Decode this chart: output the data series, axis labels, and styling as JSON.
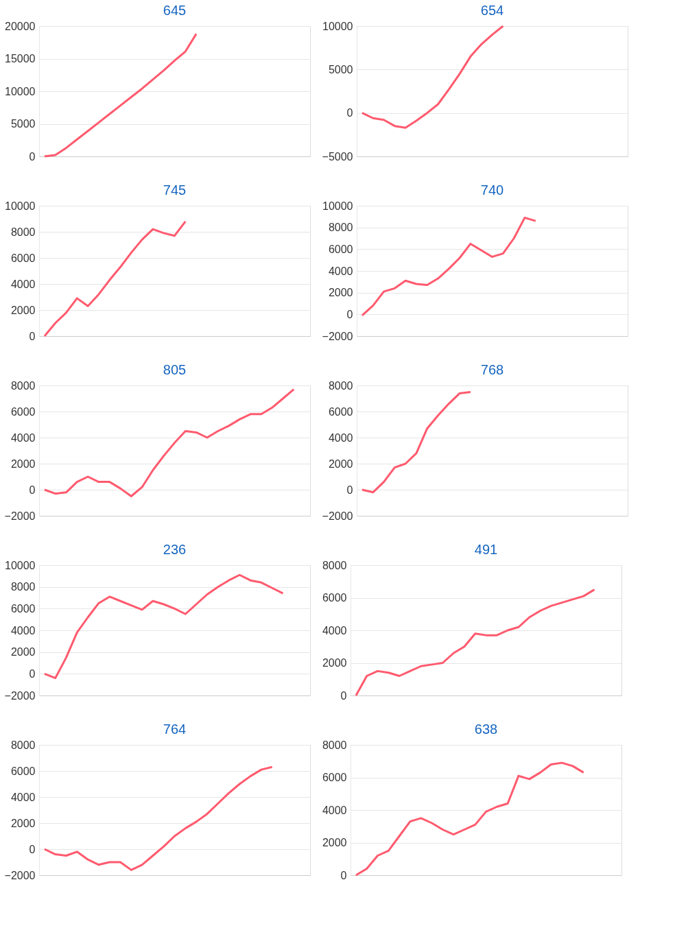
{
  "chart_data": [
    {
      "type": "line",
      "title": "645",
      "categories": [
        null,
        null,
        null,
        null,
        null,
        null,
        null,
        null,
        null,
        null,
        null,
        null,
        null,
        null,
        null,
        null,
        null,
        null,
        null,
        null,
        null,
        null,
        null,
        null,
        null
      ],
      "series": [
        {
          "color": "#ff5a6e",
          "values": [
            0,
            200,
            1300,
            2600,
            3900,
            5200,
            6500,
            7800,
            9100,
            10400,
            11800,
            13200,
            14700,
            16100,
            18800,
            null,
            null,
            null,
            null,
            null,
            null,
            null,
            null,
            null,
            null
          ]
        }
      ],
      "ylim": [
        0,
        20000
      ],
      "yticks": [
        0,
        5000,
        10000,
        15000,
        20000
      ],
      "grid": "y",
      "tick_labels": "y"
    },
    {
      "type": "line",
      "title": "654",
      "categories": [
        null,
        null,
        null,
        null,
        null,
        null,
        null,
        null,
        null,
        null,
        null,
        null,
        null,
        null,
        null,
        null,
        null,
        null,
        null,
        null,
        null,
        null,
        null,
        null,
        null
      ],
      "series": [
        {
          "color": "#ff5a6e",
          "values": [
            0,
            -600,
            -800,
            -1500,
            -1700,
            -900,
            0,
            1000,
            2700,
            4500,
            6500,
            7900,
            9000,
            10000,
            null,
            null,
            null,
            null,
            null,
            null,
            null,
            null,
            null,
            null,
            null
          ]
        }
      ],
      "ylim": [
        -5000,
        10000
      ],
      "yticks": [
        -5000,
        0,
        5000,
        10000
      ],
      "grid": "y",
      "tick_labels": "y"
    },
    {
      "type": "line",
      "title": "745",
      "categories": [
        null,
        null,
        null,
        null,
        null,
        null,
        null,
        null,
        null,
        null,
        null,
        null,
        null,
        null,
        null,
        null,
        null,
        null,
        null,
        null,
        null,
        null,
        null,
        null,
        null
      ],
      "series": [
        {
          "color": "#ff5a6e",
          "values": [
            0,
            1000,
            1800,
            2900,
            2300,
            3200,
            4300,
            5300,
            6400,
            7400,
            8200,
            7900,
            7700,
            8800,
            null,
            null,
            null,
            null,
            null,
            null,
            null,
            null,
            null,
            null,
            null
          ]
        }
      ],
      "ylim": [
        0,
        10000
      ],
      "yticks": [
        0,
        2000,
        4000,
        6000,
        8000,
        10000
      ],
      "grid": "y",
      "tick_labels": "y"
    },
    {
      "type": "line",
      "title": "740",
      "categories": [
        null,
        null,
        null,
        null,
        null,
        null,
        null,
        null,
        null,
        null,
        null,
        null,
        null,
        null,
        null,
        null,
        null,
        null,
        null,
        null,
        null,
        null,
        null,
        null,
        null
      ],
      "series": [
        {
          "color": "#ff5a6e",
          "values": [
            -100,
            800,
            2100,
            2400,
            3100,
            2800,
            2700,
            3300,
            4200,
            5200,
            6500,
            5900,
            5300,
            5600,
            7000,
            8900,
            8600,
            null,
            null,
            null,
            null,
            null,
            null,
            null,
            null
          ]
        }
      ],
      "ylim": [
        -2000,
        10000
      ],
      "yticks": [
        -2000,
        0,
        2000,
        4000,
        6000,
        8000,
        10000
      ],
      "grid": "y",
      "tick_labels": "y"
    },
    {
      "type": "line",
      "title": "805",
      "categories": [
        null,
        null,
        null,
        null,
        null,
        null,
        null,
        null,
        null,
        null,
        null,
        null,
        null,
        null,
        null,
        null,
        null,
        null,
        null,
        null,
        null,
        null,
        null,
        null,
        null
      ],
      "series": [
        {
          "color": "#ff5a6e",
          "values": [
            0,
            -300,
            -200,
            600,
            1000,
            600,
            600,
            100,
            -500,
            200,
            1500,
            2600,
            3600,
            4500,
            4400,
            4000,
            4500,
            4900,
            5400,
            5800,
            5800,
            6300,
            7000,
            7700,
            null
          ]
        }
      ],
      "ylim": [
        -2000,
        8000
      ],
      "yticks": [
        -2000,
        0,
        2000,
        4000,
        6000,
        8000
      ],
      "grid": "y",
      "tick_labels": "y"
    },
    {
      "type": "line",
      "title": "768",
      "categories": [
        null,
        null,
        null,
        null,
        null,
        null,
        null,
        null,
        null,
        null,
        null,
        null,
        null,
        null,
        null,
        null,
        null,
        null,
        null,
        null,
        null,
        null,
        null,
        null,
        null
      ],
      "series": [
        {
          "color": "#ff5a6e",
          "values": [
            0,
            -200,
            600,
            1700,
            2000,
            2800,
            4700,
            5700,
            6600,
            7400,
            7500,
            null,
            null,
            null,
            null,
            null,
            null,
            null,
            null,
            null,
            null,
            null,
            null,
            null,
            null
          ]
        }
      ],
      "ylim": [
        -2000,
        8000
      ],
      "yticks": [
        -2000,
        0,
        2000,
        4000,
        6000,
        8000
      ],
      "grid": "y",
      "tick_labels": "y"
    },
    {
      "type": "line",
      "title": "236",
      "categories": [
        null,
        null,
        null,
        null,
        null,
        null,
        null,
        null,
        null,
        null,
        null,
        null,
        null,
        null,
        null,
        null,
        null,
        null,
        null,
        null,
        null,
        null,
        null,
        null,
        null
      ],
      "series": [
        {
          "color": "#ff5a6e",
          "values": [
            0,
            -400,
            1500,
            3800,
            5200,
            6500,
            7100,
            6700,
            6300,
            5900,
            6700,
            6400,
            6000,
            5500,
            6400,
            7300,
            8000,
            8600,
            9100,
            8600,
            8400,
            7900,
            7400,
            null,
            null
          ]
        }
      ],
      "ylim": [
        -2000,
        10000
      ],
      "yticks": [
        -2000,
        0,
        2000,
        4000,
        6000,
        8000,
        10000
      ],
      "grid": "y",
      "tick_labels": "y"
    },
    {
      "type": "line",
      "title": "491",
      "categories": [
        null,
        null,
        null,
        null,
        null,
        null,
        null,
        null,
        null,
        null,
        null,
        null,
        null,
        null,
        null,
        null,
        null,
        null,
        null,
        null,
        null,
        null,
        null,
        null,
        null
      ],
      "series": [
        {
          "color": "#ff5a6e",
          "values": [
            0,
            1200,
            1500,
            1400,
            1200,
            1500,
            1800,
            1900,
            2000,
            2600,
            3000,
            3800,
            3700,
            3700,
            4000,
            4200,
            4800,
            5200,
            5500,
            5700,
            5900,
            6100,
            6500,
            null,
            null
          ]
        }
      ],
      "ylim": [
        0,
        8000
      ],
      "yticks": [
        0,
        2000,
        4000,
        6000,
        8000
      ],
      "grid": "y",
      "tick_labels": "y"
    },
    {
      "type": "line",
      "title": "764",
      "categories": [
        null,
        null,
        null,
        null,
        null,
        null,
        null,
        null,
        null,
        null,
        null,
        null,
        null,
        null,
        null,
        null,
        null,
        null,
        null,
        null,
        null,
        null,
        null,
        null,
        null
      ],
      "series": [
        {
          "color": "#ff5a6e",
          "values": [
            0,
            -400,
            -500,
            -200,
            -800,
            -1200,
            -1000,
            -1000,
            -1600,
            -1200,
            -500,
            200,
            1000,
            1600,
            2100,
            2700,
            3500,
            4300,
            5000,
            5600,
            6100,
            6300,
            null,
            null,
            null
          ]
        }
      ],
      "ylim": [
        -2000,
        8000
      ],
      "yticks": [
        -2000,
        0,
        2000,
        4000,
        6000,
        8000
      ],
      "grid": "y",
      "tick_labels": "y"
    },
    {
      "type": "line",
      "title": "638",
      "categories": [
        null,
        null,
        null,
        null,
        null,
        null,
        null,
        null,
        null,
        null,
        null,
        null,
        null,
        null,
        null,
        null,
        null,
        null,
        null,
        null,
        null,
        null,
        null,
        null,
        null
      ],
      "series": [
        {
          "color": "#ff5a6e",
          "values": [
            0,
            400,
            1200,
            1500,
            2400,
            3300,
            3500,
            3200,
            2800,
            2500,
            2800,
            3100,
            3900,
            4200,
            4400,
            6100,
            5900,
            6300,
            6800,
            6900,
            6700,
            6300,
            null,
            null,
            null
          ]
        }
      ],
      "ylim": [
        0,
        8000
      ],
      "yticks": [
        0,
        2000,
        4000,
        6000,
        8000
      ],
      "grid": "y",
      "tick_labels": "y"
    }
  ]
}
